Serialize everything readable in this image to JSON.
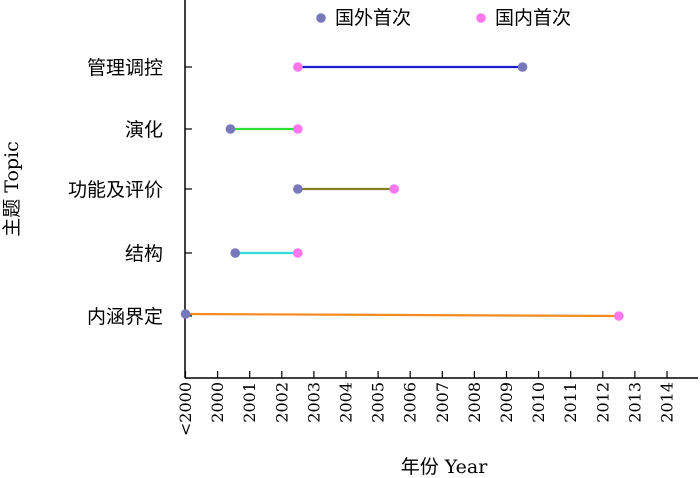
{
  "chart_data": {
    "type": "dumbbell",
    "title": "",
    "xlabel": "年份 Year",
    "ylabel": "主题 Topic",
    "x_ticks": [
      "<2000",
      "2000",
      "2001",
      "2002",
      "2003",
      "2004",
      "2005",
      "2006",
      "2007",
      "2008",
      "2009",
      "2010",
      "2011",
      "2012",
      "2013",
      "2014"
    ],
    "xlim": [
      -0.5,
      15
    ],
    "grid": false,
    "legend": {
      "placement": "top",
      "entries": [
        {
          "name": "国外首次",
          "color": "#7777bb"
        },
        {
          "name": "国内首次",
          "color": "#ff77ee"
        }
      ]
    },
    "categories": [
      "管理调控",
      "演化",
      "功能及评价",
      "结构",
      "内涵界定"
    ],
    "series": [
      {
        "name": "国外首次",
        "values": [
          2010,
          2000.9,
          2003,
          2001.05,
          1999.5
        ]
      },
      {
        "name": "国内首次",
        "values": [
          2003,
          2003,
          2006,
          2003,
          2013
        ]
      }
    ],
    "segment_colors": [
      "#1c1ccc",
      "#33dd33",
      "#808020",
      "#33dddd",
      "#f58a1f"
    ]
  }
}
